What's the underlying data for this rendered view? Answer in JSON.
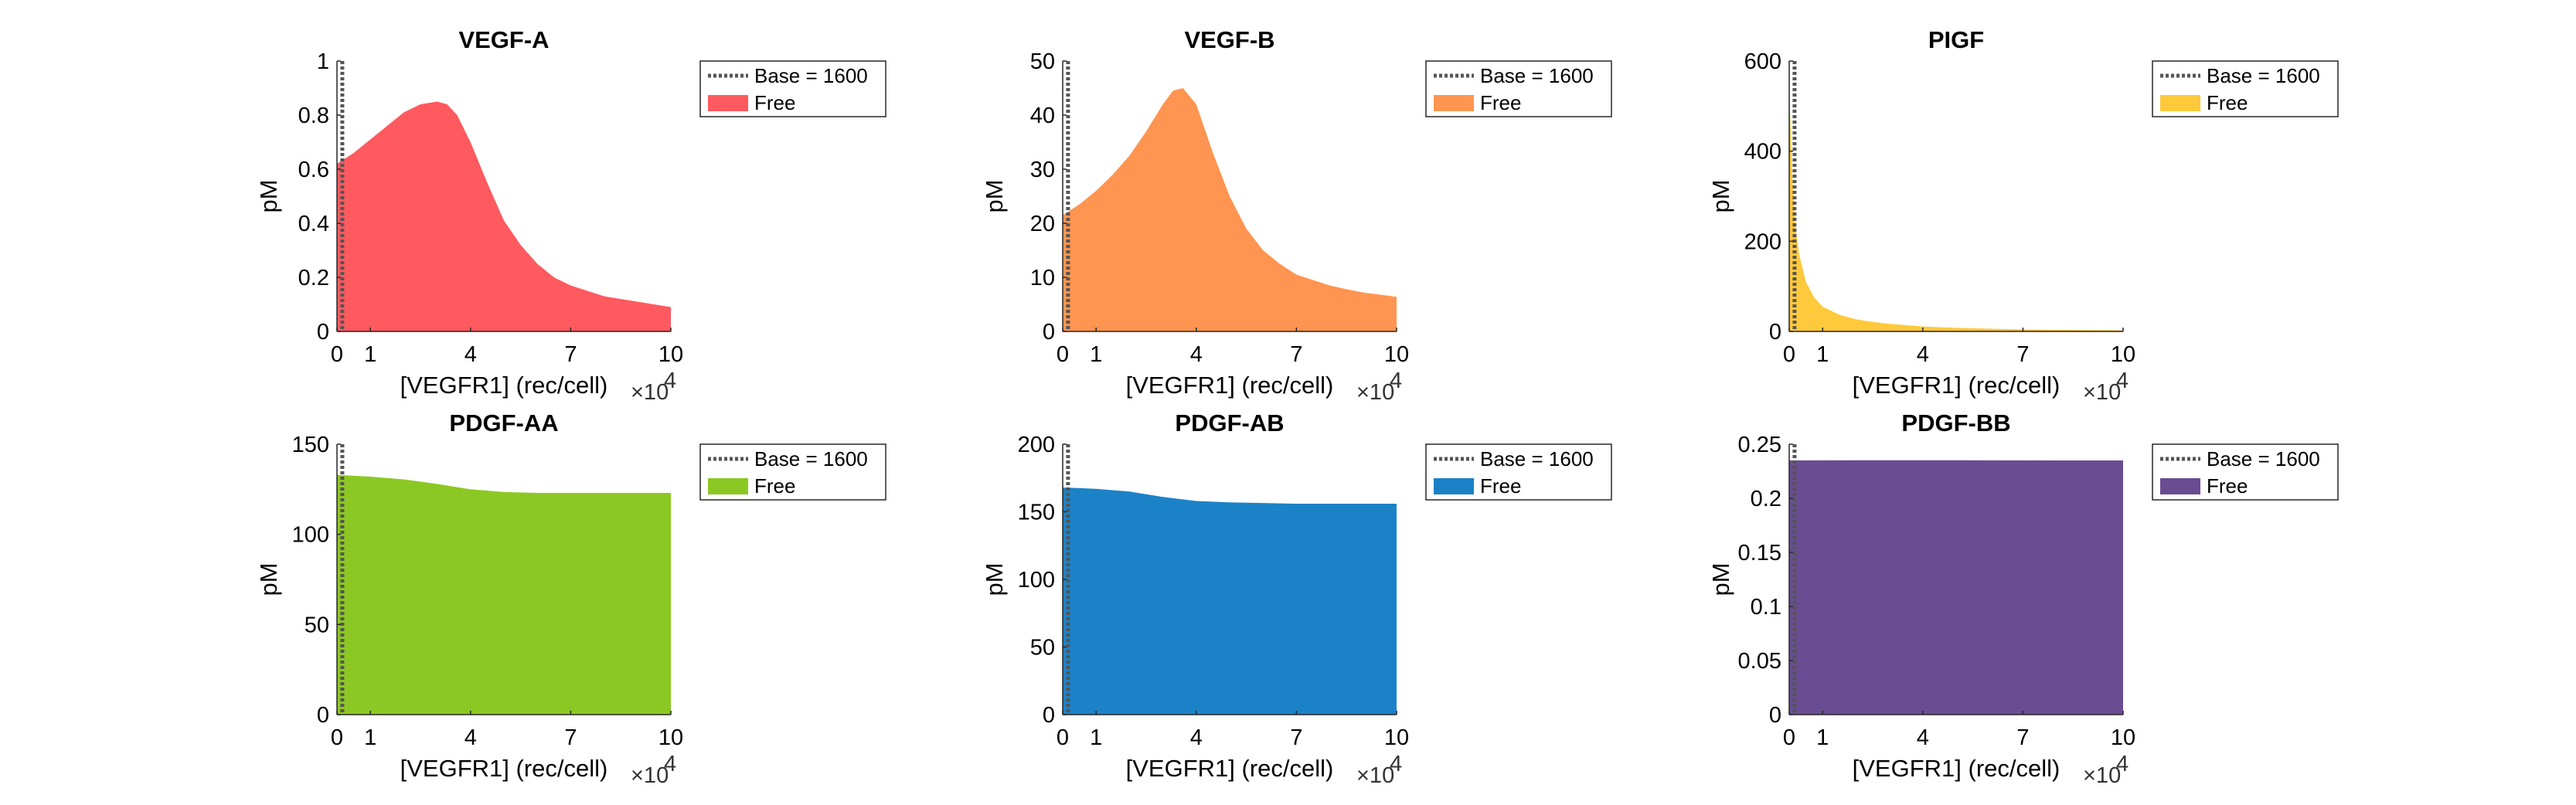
{
  "chart_data": [
    {
      "type": "area",
      "title": "VEGF-A",
      "xlabel": "[VEGFR1] (rec/cell)",
      "ylabel": "pM",
      "x_multiplier": "×10",
      "x_multiplier_exp": "4",
      "xlim": [
        0,
        10
      ],
      "ylim": [
        0,
        1
      ],
      "xticks": [
        0,
        1,
        4,
        7,
        10
      ],
      "yticks": [
        0,
        0.2,
        0.4,
        0.6,
        0.8,
        1
      ],
      "ytick_labels": [
        "0",
        "0.2",
        "0.4",
        "0.6",
        "0.8",
        "1"
      ],
      "color": "#FF5A5F",
      "base_line": 0.16,
      "legend": [
        "Base = 1600",
        "Free"
      ],
      "legend_position": "right-outside",
      "series": [
        {
          "name": "Free",
          "x": [
            0,
            0.5,
            1,
            1.5,
            2,
            2.5,
            3,
            3.3,
            3.6,
            4,
            4.5,
            5,
            5.5,
            6,
            6.5,
            7,
            7.5,
            8,
            8.5,
            9,
            9.5,
            10
          ],
          "values": [
            0.62,
            0.66,
            0.71,
            0.76,
            0.81,
            0.84,
            0.85,
            0.84,
            0.8,
            0.7,
            0.55,
            0.41,
            0.32,
            0.25,
            0.2,
            0.17,
            0.15,
            0.13,
            0.12,
            0.11,
            0.1,
            0.09
          ]
        }
      ]
    },
    {
      "type": "area",
      "title": "VEGF-B",
      "xlabel": "[VEGFR1] (rec/cell)",
      "ylabel": "pM",
      "x_multiplier": "×10",
      "x_multiplier_exp": "4",
      "xlim": [
        0,
        10
      ],
      "ylim": [
        0,
        50
      ],
      "xticks": [
        0,
        1,
        4,
        7,
        10
      ],
      "yticks": [
        0,
        10,
        20,
        30,
        40,
        50
      ],
      "ytick_labels": [
        "0",
        "10",
        "20",
        "30",
        "40",
        "50"
      ],
      "color": "#FF9550",
      "base_line": 0.16,
      "legend": [
        "Base = 1600",
        "Free"
      ],
      "legend_position": "right-outside",
      "series": [
        {
          "name": "Free",
          "x": [
            0,
            0.5,
            1,
            1.5,
            2,
            2.5,
            3,
            3.3,
            3.6,
            4,
            4.5,
            5,
            5.5,
            6,
            6.5,
            7,
            7.5,
            8,
            8.5,
            9,
            9.5,
            10
          ],
          "values": [
            21.5,
            23.5,
            26,
            29,
            32.5,
            37,
            42,
            44.5,
            45,
            42,
            33,
            25,
            19,
            15,
            12.5,
            10.5,
            9.5,
            8.5,
            7.8,
            7.2,
            6.8,
            6.4
          ]
        }
      ]
    },
    {
      "type": "area",
      "title": "PIGF",
      "xlabel": "[VEGFR1] (rec/cell)",
      "ylabel": "pM",
      "x_multiplier": "×10",
      "x_multiplier_exp": "4",
      "xlim": [
        0,
        10
      ],
      "ylim": [
        0,
        600
      ],
      "xticks": [
        0,
        1,
        4,
        7,
        10
      ],
      "yticks": [
        0,
        200,
        400,
        600
      ],
      "ytick_labels": [
        "0",
        "200",
        "400",
        "600"
      ],
      "color": "#FFC93C",
      "base_line": 0.16,
      "legend": [
        "Base = 1600",
        "Free"
      ],
      "legend_position": "right-outside",
      "series": [
        {
          "name": "Free",
          "x": [
            0,
            0.1,
            0.2,
            0.3,
            0.5,
            0.75,
            1,
            1.5,
            2,
            2.5,
            3,
            4,
            5,
            6,
            7,
            8,
            9,
            10
          ],
          "values": [
            540,
            330,
            225,
            170,
            110,
            75,
            55,
            37,
            27,
            21,
            17,
            11,
            8,
            6,
            4.5,
            3.5,
            3,
            2.5
          ]
        }
      ]
    },
    {
      "type": "area",
      "title": "PDGF-AA",
      "xlabel": "[VEGFR1] (rec/cell)",
      "ylabel": "pM",
      "x_multiplier": "×10",
      "x_multiplier_exp": "4",
      "xlim": [
        0,
        10
      ],
      "ylim": [
        0,
        150
      ],
      "xticks": [
        0,
        1,
        4,
        7,
        10
      ],
      "yticks": [
        0,
        50,
        100,
        150
      ],
      "ytick_labels": [
        "0",
        "50",
        "100",
        "150"
      ],
      "color": "#8CC823",
      "base_line": 0.16,
      "legend": [
        "Base = 1600",
        "Free"
      ],
      "legend_position": "right-outside",
      "series": [
        {
          "name": "Free",
          "x": [
            0,
            1,
            2,
            3,
            4,
            5,
            6,
            7,
            8,
            9,
            10
          ],
          "values": [
            133,
            132,
            130.5,
            128,
            125,
            123.5,
            123,
            123,
            123,
            123,
            123
          ]
        }
      ]
    },
    {
      "type": "area",
      "title": "PDGF-AB",
      "xlabel": "[VEGFR1] (rec/cell)",
      "ylabel": "pM",
      "x_multiplier": "×10",
      "x_multiplier_exp": "4",
      "xlim": [
        0,
        10
      ],
      "ylim": [
        0,
        200
      ],
      "xticks": [
        0,
        1,
        4,
        7,
        10
      ],
      "yticks": [
        0,
        50,
        100,
        150,
        200
      ],
      "ytick_labels": [
        "0",
        "50",
        "100",
        "150",
        "200"
      ],
      "color": "#1C82C8",
      "base_line": 0.16,
      "legend": [
        "Base = 1600",
        "Free"
      ],
      "legend_position": "right-outside",
      "series": [
        {
          "name": "Free",
          "x": [
            0,
            1,
            2,
            3,
            4,
            5,
            6,
            7,
            8,
            9,
            10
          ],
          "values": [
            168,
            167,
            165,
            161,
            158,
            157,
            156.5,
            156,
            156,
            156,
            156
          ]
        }
      ]
    },
    {
      "type": "area",
      "title": "PDGF-BB",
      "xlabel": "[VEGFR1] (rec/cell)",
      "ylabel": "pM",
      "x_multiplier": "×10",
      "x_multiplier_exp": "4",
      "xlim": [
        0,
        10
      ],
      "ylim": [
        0,
        0.25
      ],
      "xticks": [
        0,
        1,
        4,
        7,
        10
      ],
      "yticks": [
        0,
        0.05,
        0.1,
        0.15,
        0.2,
        0.25
      ],
      "ytick_labels": [
        "0",
        "0.05",
        "0.1",
        "0.15",
        "0.2",
        "0.25"
      ],
      "color": "#6A4C93",
      "base_line": 0.16,
      "legend": [
        "Base = 1600",
        "Free"
      ],
      "legend_position": "right-outside",
      "series": [
        {
          "name": "Free",
          "x": [
            0,
            2,
            4,
            6,
            8,
            10
          ],
          "values": [
            0.235,
            0.2352,
            0.2352,
            0.2351,
            0.235,
            0.235
          ]
        }
      ]
    }
  ]
}
